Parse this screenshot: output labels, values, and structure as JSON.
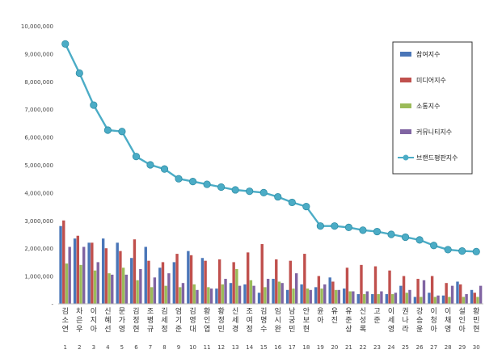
{
  "chart_data": {
    "type": "bar",
    "title": "",
    "xlabel": "",
    "ylabel": "",
    "ylim": [
      0,
      10000000
    ],
    "y_ticks": [
      "-",
      "1,000,000",
      "2,000,000",
      "3,000,000",
      "4,000,000",
      "5,000,000",
      "6,000,000",
      "7,000,000",
      "8,000,000",
      "9,000,000",
      "10,000,000"
    ],
    "grid": false,
    "legend_position": "right",
    "categories": [
      "김소연",
      "차은우",
      "이지아",
      "신혜선",
      "문가영",
      "김정현",
      "조병규",
      "김세정",
      "엄기준",
      "김영대",
      "황인엽",
      "황정민",
      "신세경",
      "조여정",
      "김명수",
      "임시완",
      "남궁민",
      "안보현",
      "윤아",
      "유진",
      "유준상",
      "신성록",
      "고준",
      "이세영",
      "권나라",
      "강승윤",
      "이청아",
      "이채영",
      "설인아",
      "황민현"
    ],
    "ranks": [
      "1",
      "2",
      "3",
      "4",
      "5",
      "6",
      "7",
      "8",
      "9",
      "10",
      "11",
      "12",
      "13",
      "14",
      "15",
      "16",
      "17",
      "18",
      "19",
      "20",
      "21",
      "22",
      "23",
      "24",
      "25",
      "26",
      "27",
      "28",
      "29",
      "30"
    ],
    "series": [
      {
        "name": "참여지수",
        "kind": "bar",
        "color": "#4a76b8",
        "values": [
          2800000,
          2350000,
          2200000,
          2350000,
          2200000,
          1650000,
          2050000,
          1300000,
          1500000,
          1900000,
          1650000,
          550000,
          750000,
          700000,
          400000,
          900000,
          500000,
          700000,
          600000,
          950000,
          550000,
          350000,
          350000,
          350000,
          650000,
          250000,
          400000,
          300000,
          800000,
          500000
        ]
      },
      {
        "name": "미디어지수",
        "kind": "bar",
        "color": "#c0504d",
        "values": [
          3000000,
          2450000,
          2200000,
          2000000,
          1900000,
          2320000,
          1550000,
          1500000,
          1800000,
          1750000,
          1550000,
          1600000,
          1500000,
          1850000,
          2150000,
          1600000,
          1550000,
          1800000,
          1000000,
          800000,
          1300000,
          1400000,
          1350000,
          1200000,
          1000000,
          900000,
          1000000,
          750000,
          700000,
          400000
        ]
      },
      {
        "name": "소통지수",
        "kind": "bar",
        "color": "#9bbb59",
        "values": [
          1450000,
          1400000,
          1200000,
          1100000,
          1300000,
          850000,
          600000,
          650000,
          600000,
          700000,
          600000,
          700000,
          1250000,
          850000,
          600000,
          800000,
          550000,
          550000,
          550000,
          500000,
          450000,
          350000,
          350000,
          350000,
          400000,
          250000,
          250000,
          250000,
          250000,
          250000
        ]
      },
      {
        "name": "커뮤니티지수",
        "kind": "bar",
        "color": "#8064a2",
        "values": [
          2050000,
          2050000,
          1500000,
          1050000,
          1050000,
          1250000,
          950000,
          1100000,
          750000,
          500000,
          550000,
          900000,
          650000,
          650000,
          900000,
          750000,
          1100000,
          500000,
          700000,
          500000,
          450000,
          450000,
          450000,
          400000,
          500000,
          850000,
          300000,
          650000,
          350000,
          650000
        ]
      },
      {
        "name": "브랜드평판지수",
        "kind": "line",
        "color": "#4bacc6",
        "values": [
          9350000,
          8300000,
          7150000,
          6250000,
          6200000,
          5300000,
          5000000,
          4850000,
          4500000,
          4400000,
          4300000,
          4200000,
          4100000,
          4050000,
          4000000,
          3850000,
          3650000,
          3500000,
          2800000,
          2800000,
          2750000,
          2650000,
          2600000,
          2500000,
          2400000,
          2300000,
          2100000,
          1950000,
          1900000,
          1880000
        ]
      }
    ]
  }
}
